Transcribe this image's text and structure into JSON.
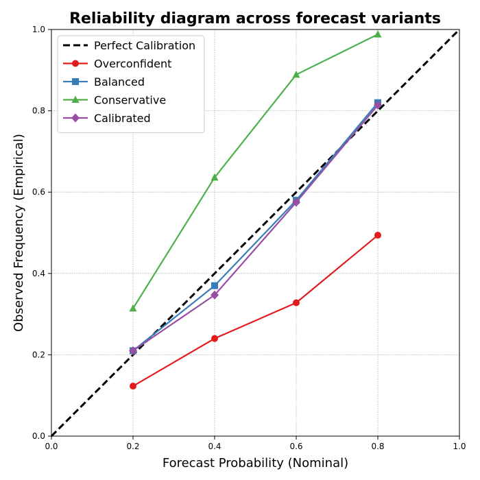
{
  "chart_data": {
    "type": "line",
    "title": "Reliability diagram across forecast variants",
    "xlabel": "Forecast Probability (Nominal)",
    "ylabel": "Observed Frequency (Empirical)",
    "xlim": [
      0.0,
      1.0
    ],
    "ylim": [
      0.0,
      1.0
    ],
    "xticks": [
      "0.0",
      "0.2",
      "0.4",
      "0.6",
      "0.8",
      "1.0"
    ],
    "yticks": [
      "0.0",
      "0.2",
      "0.4",
      "0.6",
      "0.8",
      "1.0"
    ],
    "grid": true,
    "legend_position": "top-left",
    "reference_line": {
      "name": "Perfect Calibration",
      "x": [
        0.0,
        1.0
      ],
      "y": [
        0.0,
        1.0
      ],
      "color": "#000000",
      "style": "dashed"
    },
    "x": [
      0.2,
      0.4,
      0.6,
      0.8
    ],
    "series": [
      {
        "name": "Overconfident",
        "values": [
          0.123,
          0.24,
          0.328,
          0.494
        ],
        "color": "#e41a1c",
        "marker": "circle"
      },
      {
        "name": "Balanced",
        "values": [
          0.21,
          0.37,
          0.58,
          0.82
        ],
        "color": "#377eb8",
        "marker": "square"
      },
      {
        "name": "Conservative",
        "values": [
          0.314,
          0.636,
          0.889,
          0.988
        ],
        "color": "#4daf4a",
        "marker": "triangle"
      },
      {
        "name": "Calibrated",
        "values": [
          0.21,
          0.347,
          0.575,
          0.814
        ],
        "color": "#984ea3",
        "marker": "diamond"
      }
    ]
  }
}
